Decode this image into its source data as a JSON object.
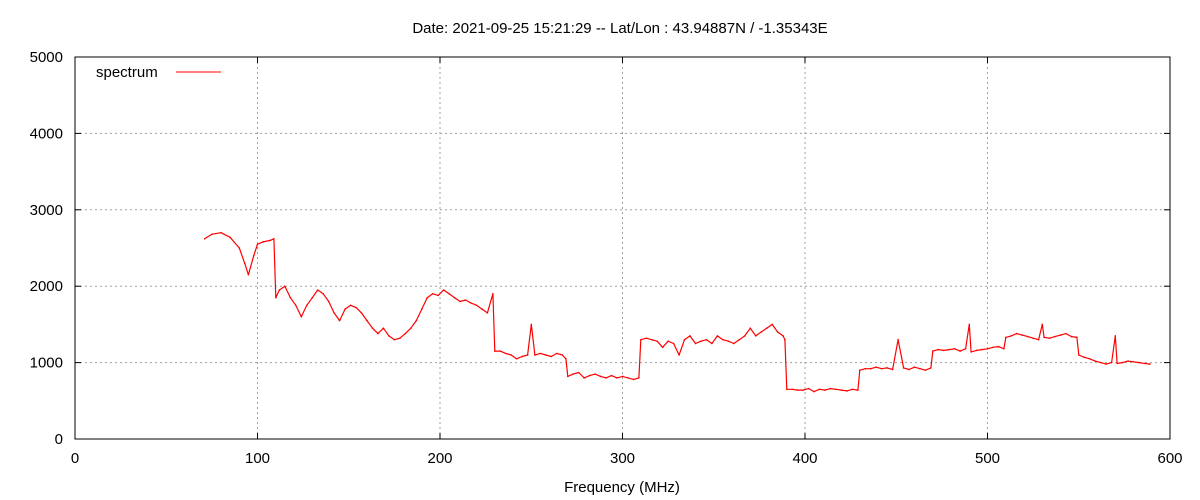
{
  "chart_data": {
    "type": "line",
    "title": "Date: 2021-09-25 15:21:29  --  Lat/Lon : 43.94887N / -1.35343E",
    "xlabel": "Frequency (MHz)",
    "ylabel": "",
    "xlim": [
      0,
      600
    ],
    "ylim": [
      0,
      5000
    ],
    "xticks": [
      0,
      100,
      200,
      300,
      400,
      500,
      600
    ],
    "yticks": [
      0,
      1000,
      2000,
      3000,
      4000,
      5000
    ],
    "grid": true,
    "legend": "top-left",
    "series": [
      {
        "name": "spectrum",
        "color": "#ff0000",
        "x": [
          71,
          75,
          80,
          85,
          90,
          93,
          95,
          98,
          100,
          103,
          107,
          109,
          110,
          112,
          115,
          118,
          121,
          124,
          127,
          130,
          133,
          136,
          139,
          142,
          145,
          148,
          151,
          154,
          157,
          160,
          163,
          166,
          169,
          172,
          175,
          178,
          181,
          184,
          187,
          190,
          193,
          196,
          199,
          202,
          205,
          208,
          211,
          214,
          217,
          220,
          223,
          226,
          229,
          230,
          233,
          236,
          239,
          242,
          245,
          248,
          250,
          252,
          255,
          258,
          261,
          264,
          267,
          269,
          270,
          273,
          276,
          279,
          282,
          285,
          288,
          291,
          294,
          297,
          300,
          303,
          306,
          309,
          310,
          313,
          316,
          319,
          322,
          325,
          328,
          331,
          334,
          337,
          340,
          343,
          346,
          349,
          352,
          355,
          358,
          361,
          364,
          367,
          370,
          373,
          376,
          379,
          382,
          385,
          388,
          389,
          390,
          393,
          396,
          399,
          402,
          405,
          408,
          411,
          414,
          417,
          420,
          423,
          426,
          429,
          430,
          433,
          436,
          439,
          442,
          445,
          448,
          451,
          454,
          457,
          460,
          463,
          466,
          469,
          470,
          473,
          476,
          479,
          482,
          485,
          488,
          490,
          491,
          494,
          497,
          500,
          503,
          506,
          509,
          510,
          513,
          516,
          519,
          522,
          525,
          528,
          530,
          531,
          534,
          537,
          540,
          543,
          546,
          549,
          550,
          553,
          556,
          559,
          562,
          565,
          568,
          570,
          571,
          574,
          577,
          580,
          583,
          586,
          589
        ],
        "y": [
          2620,
          2680,
          2700,
          2640,
          2500,
          2300,
          2150,
          2400,
          2550,
          2580,
          2600,
          2620,
          1850,
          1950,
          2000,
          1850,
          1750,
          1600,
          1750,
          1850,
          1950,
          1900,
          1800,
          1650,
          1550,
          1700,
          1750,
          1720,
          1650,
          1550,
          1450,
          1380,
          1450,
          1350,
          1300,
          1320,
          1380,
          1450,
          1550,
          1700,
          1850,
          1900,
          1880,
          1950,
          1900,
          1850,
          1800,
          1820,
          1780,
          1750,
          1700,
          1650,
          1900,
          1150,
          1150,
          1120,
          1100,
          1050,
          1080,
          1100,
          1500,
          1100,
          1120,
          1100,
          1080,
          1120,
          1100,
          1050,
          820,
          850,
          870,
          800,
          830,
          850,
          820,
          800,
          830,
          800,
          820,
          800,
          780,
          800,
          1300,
          1320,
          1300,
          1280,
          1200,
          1280,
          1250,
          1100,
          1300,
          1350,
          1250,
          1280,
          1300,
          1250,
          1350,
          1300,
          1280,
          1250,
          1300,
          1350,
          1450,
          1350,
          1400,
          1450,
          1500,
          1400,
          1350,
          1300,
          650,
          650,
          640,
          640,
          660,
          620,
          650,
          640,
          660,
          650,
          640,
          630,
          650,
          640,
          900,
          920,
          920,
          940,
          920,
          930,
          910,
          1300,
          930,
          910,
          940,
          920,
          900,
          930,
          1150,
          1170,
          1160,
          1170,
          1180,
          1150,
          1180,
          1500,
          1140,
          1160,
          1170,
          1180,
          1200,
          1210,
          1180,
          1330,
          1350,
          1380,
          1360,
          1340,
          1320,
          1300,
          1500,
          1330,
          1320,
          1340,
          1360,
          1380,
          1340,
          1330,
          1100,
          1070,
          1050,
          1020,
          1000,
          980,
          1000,
          1350,
          990,
          1000,
          1020,
          1010,
          1000,
          990,
          980
        ]
      }
    ]
  }
}
